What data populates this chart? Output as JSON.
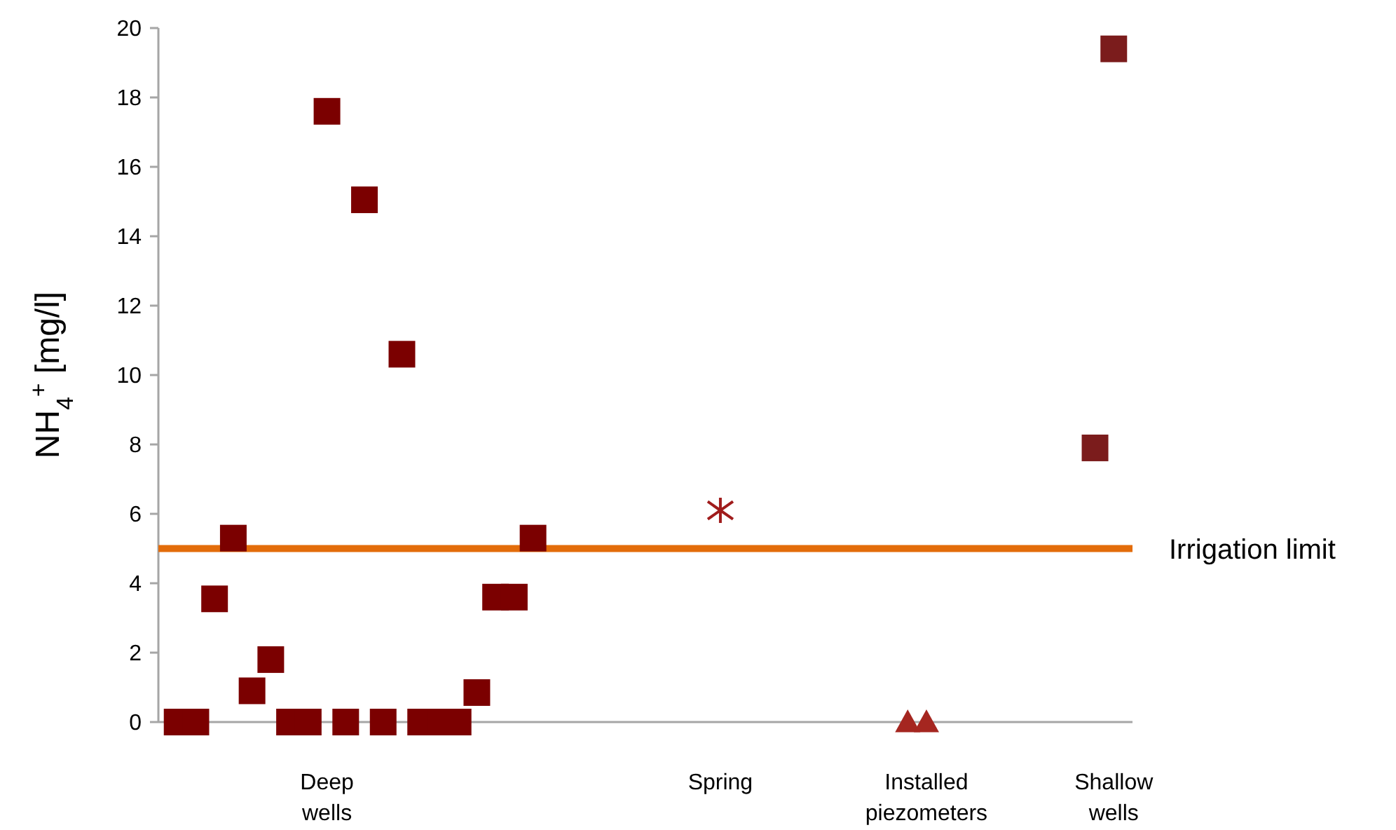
{
  "chart_data": {
    "type": "scatter",
    "ylabel": "NH$_{4}$$^{+}$ [mg/l]",
    "categories": [
      null,
      null,
      null,
      null,
      null,
      null,
      null,
      null,
      "Deep wells",
      null,
      null,
      null,
      null,
      null,
      null,
      null,
      null,
      null,
      null,
      null,
      null,
      null,
      null,
      null,
      null,
      null,
      null,
      null,
      null,
      "Spring",
      null,
      null,
      null,
      null,
      null,
      null,
      null,
      null,
      null,
      null,
      "Installed piezometers",
      null,
      null,
      null,
      null,
      null,
      null,
      null,
      null,
      null,
      "Shallow wells"
    ],
    "ylim": [
      0,
      20
    ],
    "yticks": [
      0,
      2,
      4,
      6,
      8,
      10,
      12,
      14,
      16,
      18,
      20
    ],
    "grid": false,
    "series": [
      {
        "color": "#7b0000",
        "marker": "square",
        "values": [
          0,
          0,
          3.55,
          5.3,
          0.9,
          1.8,
          0,
          0,
          17.6,
          0,
          15.05,
          0,
          10.6,
          0,
          0,
          0,
          0.85,
          3.6,
          3.6,
          5.3,
          null,
          null,
          null,
          null,
          null,
          null,
          null,
          null,
          null,
          null,
          null,
          null,
          null,
          null,
          null,
          null,
          null,
          null,
          null,
          null,
          null,
          null,
          null,
          null,
          null,
          null,
          null,
          null,
          null,
          null,
          null
        ]
      },
      {
        "color": "#a01c1c",
        "marker": "cross",
        "values": [
          null,
          null,
          null,
          null,
          null,
          null,
          null,
          null,
          null,
          null,
          null,
          null,
          null,
          null,
          null,
          null,
          null,
          null,
          null,
          null,
          null,
          null,
          null,
          null,
          null,
          null,
          null,
          null,
          null,
          6.1,
          null,
          null,
          null,
          null,
          null,
          null,
          null,
          null,
          null,
          null,
          null,
          null,
          null,
          null,
          null,
          null,
          null,
          null,
          null,
          null,
          null
        ]
      },
      {
        "color": "#a52620",
        "marker": "triangle",
        "values": [
          null,
          null,
          null,
          null,
          null,
          null,
          null,
          null,
          null,
          null,
          null,
          null,
          null,
          null,
          null,
          null,
          null,
          null,
          null,
          null,
          null,
          null,
          null,
          null,
          null,
          null,
          null,
          null,
          null,
          null,
          null,
          null,
          null,
          null,
          null,
          null,
          null,
          null,
          null,
          0,
          0,
          null,
          null,
          null,
          null,
          null,
          null,
          null,
          null,
          null,
          null
        ]
      },
      {
        "color": "#7b1c1c",
        "marker": "square",
        "values": [
          null,
          null,
          null,
          null,
          null,
          null,
          null,
          null,
          null,
          null,
          null,
          null,
          null,
          null,
          null,
          null,
          null,
          null,
          null,
          null,
          null,
          null,
          null,
          null,
          null,
          null,
          null,
          null,
          null,
          null,
          null,
          null,
          null,
          null,
          null,
          null,
          null,
          null,
          null,
          null,
          null,
          null,
          null,
          null,
          null,
          null,
          null,
          null,
          null,
          7.9,
          19.4
        ]
      }
    ],
    "ref_lines": [
      {
        "axis": "y",
        "value": 5,
        "label": "Irrigation limit",
        "color": "#e36c0a"
      }
    ]
  }
}
